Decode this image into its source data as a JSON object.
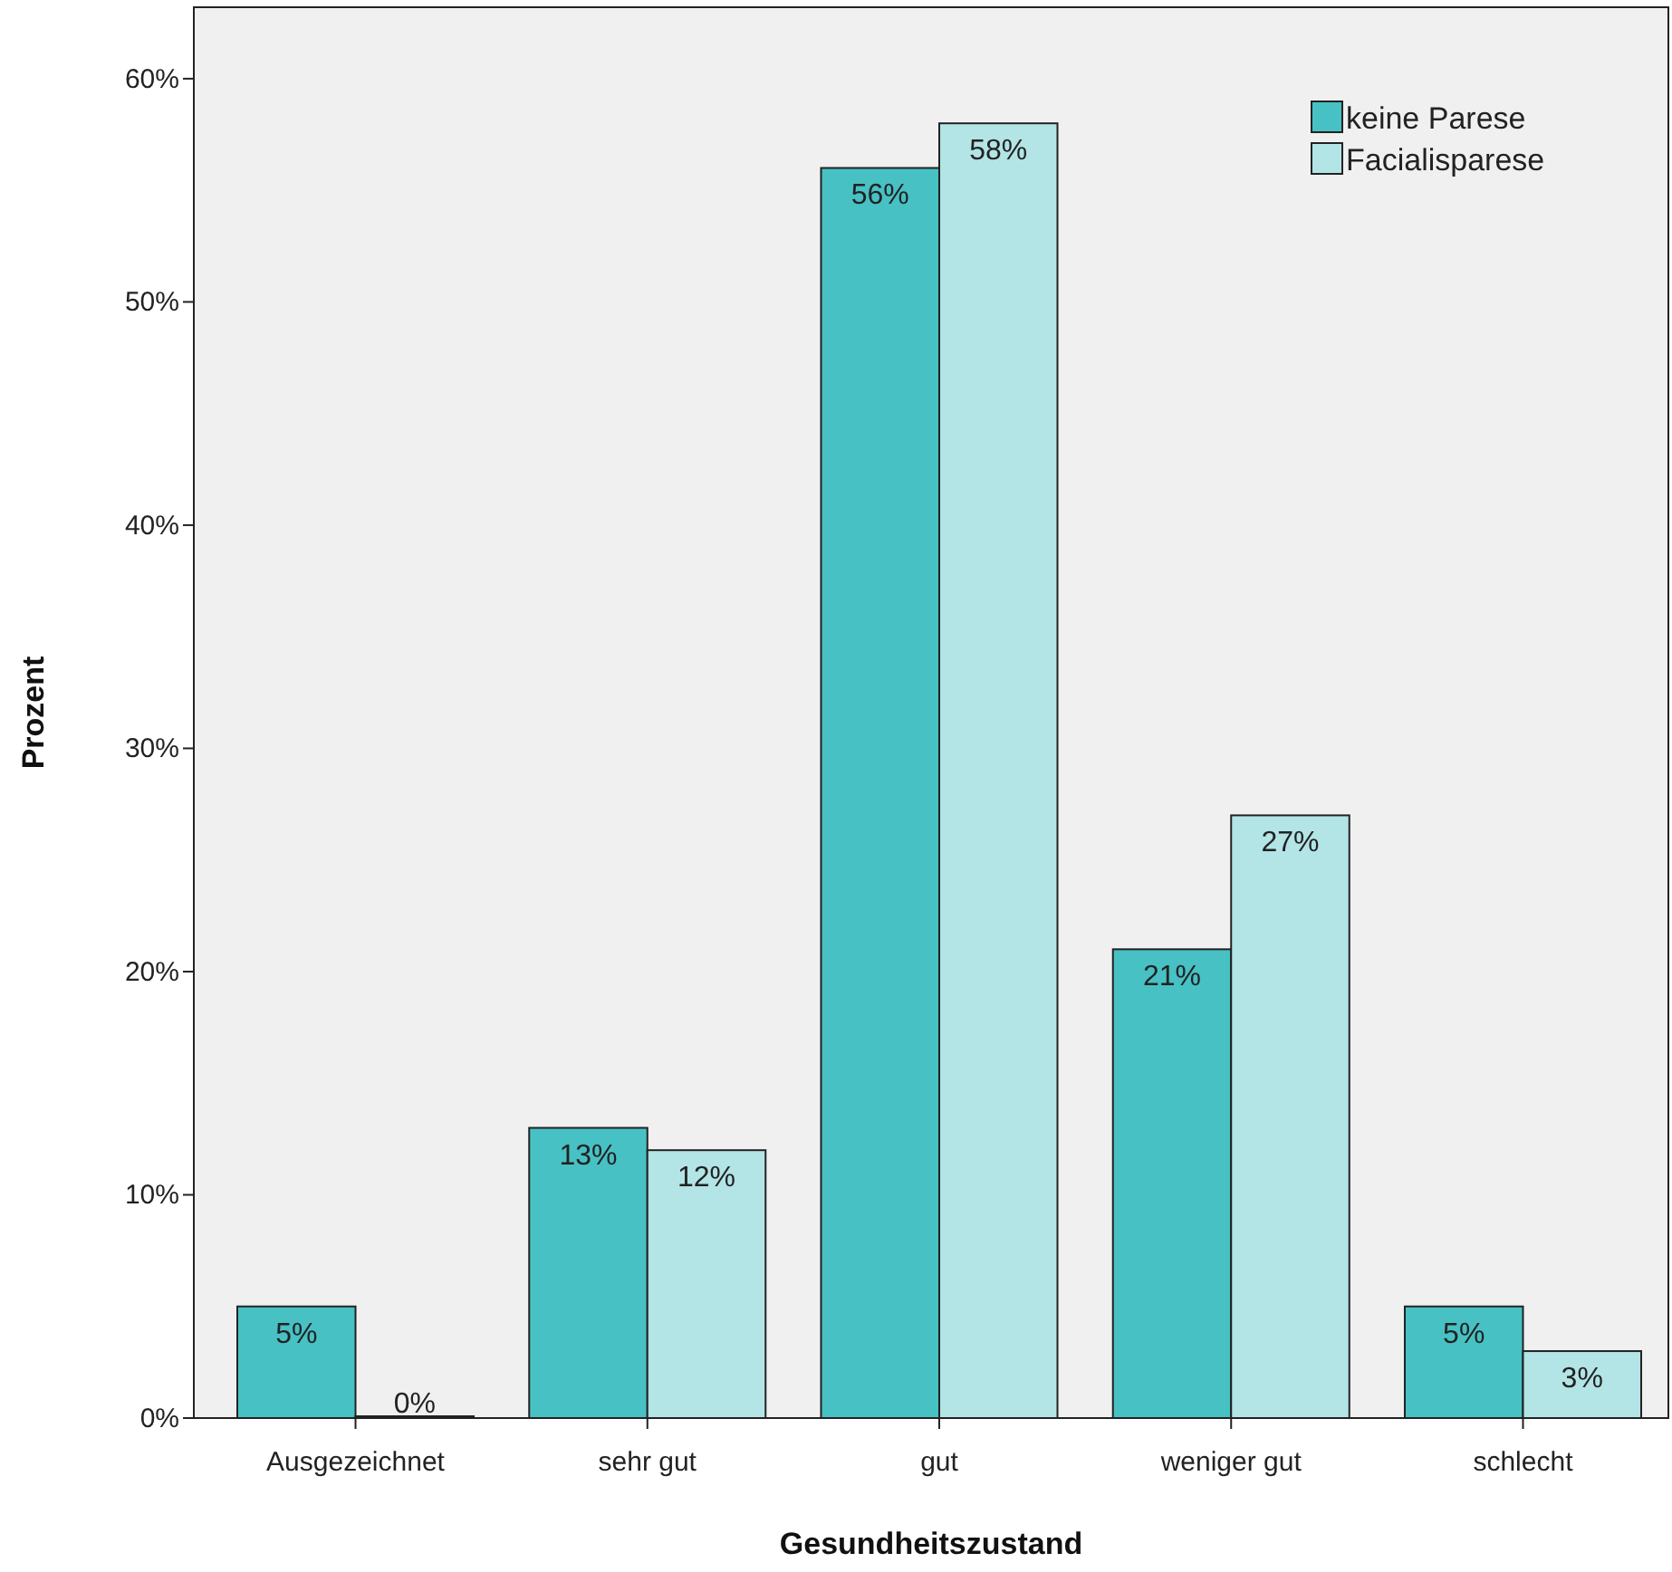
{
  "chart_data": {
    "type": "bar",
    "xlabel": "Gesundheitszustand",
    "ylabel": "Prozent",
    "categories": [
      "Ausgezeichnet",
      "sehr gut",
      "gut",
      "weniger gut",
      "schlecht"
    ],
    "series": [
      {
        "name": "keine Parese",
        "color": "#47c1c4",
        "values": [
          5,
          13,
          56,
          21,
          5
        ],
        "value_labels": [
          "5%",
          "13%",
          "56%",
          "21%",
          "5%"
        ]
      },
      {
        "name": "Facialisparese",
        "color": "#b3e4e6",
        "values": [
          0,
          12,
          58,
          27,
          3
        ],
        "value_labels": [
          "0%",
          "12%",
          "58%",
          "27%",
          "3%"
        ]
      }
    ],
    "ylim": [
      0,
      63.2
    ],
    "yticks": [
      {
        "value": 0,
        "label": "0%"
      },
      {
        "value": 10,
        "label": "10%"
      },
      {
        "value": 20,
        "label": "20%"
      },
      {
        "value": 30,
        "label": "30%"
      },
      {
        "value": 40,
        "label": "40%"
      },
      {
        "value": 50,
        "label": "50%"
      },
      {
        "value": 60,
        "label": "60%"
      }
    ],
    "legend": "top right",
    "grid": false
  }
}
